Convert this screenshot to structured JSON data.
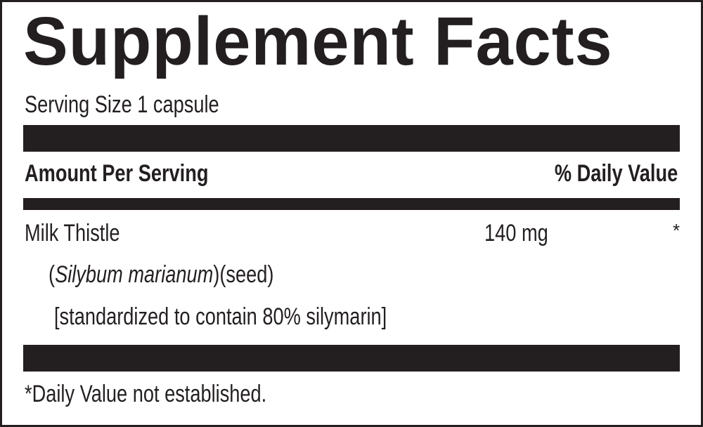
{
  "title": "Supplement Facts",
  "serving_size": "Serving Size 1 capsule",
  "header": {
    "amount_per_serving": "Amount Per Serving",
    "daily_value": "% Daily Value"
  },
  "ingredients": [
    {
      "name": "Milk Thistle",
      "latin_name": "Silybum marianum",
      "open_paren": "(",
      "close_part": ")(seed)",
      "standardization": "[standardized to contain 80% silymarin]",
      "amount": "140 mg",
      "dv": "*"
    }
  ],
  "footnote": "*Daily Value not established.",
  "colors": {
    "ink": "#231f20",
    "background": "#ffffff"
  }
}
